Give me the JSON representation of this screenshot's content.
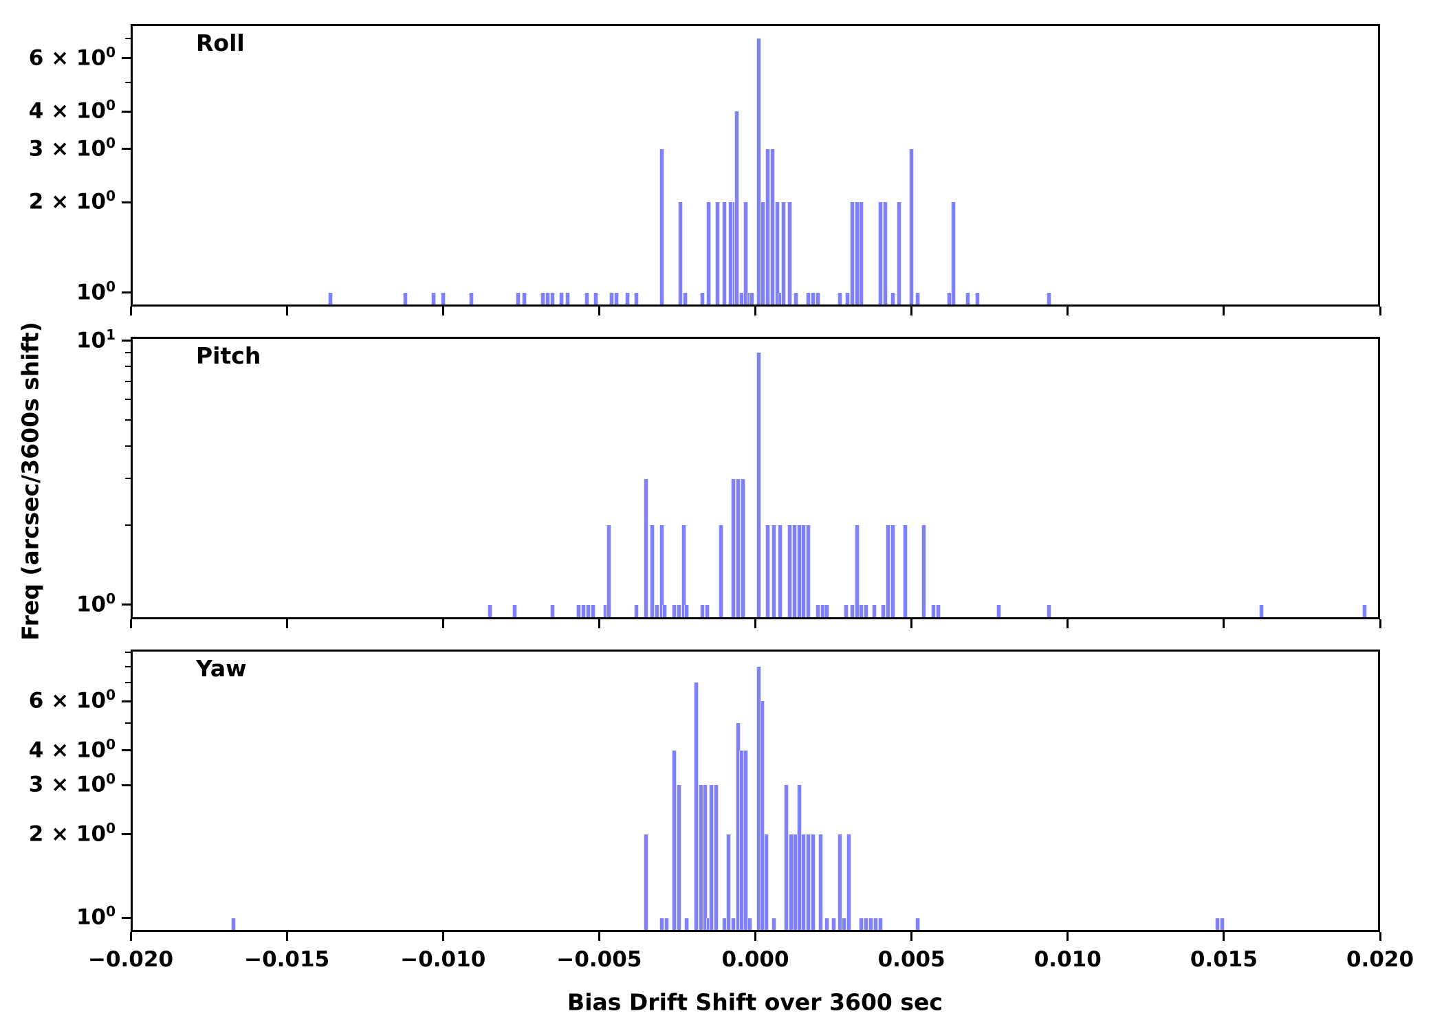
{
  "figure": {
    "xlabel": "Bias Drift Shift over 3600 sec",
    "ylabel": "Freq (arcsec/3600s shift)",
    "bar_color": "#8081f8",
    "bar_edge_color": "#dcdcfb",
    "axis_color": "#000000",
    "background_color": "#ffffff",
    "xlim": [
      -0.02,
      0.02
    ],
    "xticks": [
      {
        "value": -0.02,
        "label": "−0.020"
      },
      {
        "value": -0.015,
        "label": "−0.015"
      },
      {
        "value": -0.01,
        "label": "−0.010"
      },
      {
        "value": -0.005,
        "label": "−0.005"
      },
      {
        "value": 0.0,
        "label": "0.000"
      },
      {
        "value": 0.005,
        "label": "0.005"
      },
      {
        "value": 0.01,
        "label": "0.010"
      },
      {
        "value": 0.015,
        "label": "0.015"
      },
      {
        "value": 0.02,
        "label": "0.020"
      }
    ]
  },
  "chart_data": [
    {
      "type": "bar",
      "name": "Roll",
      "yscale": "log",
      "grid": false,
      "ylim": [
        0.9,
        7.8
      ],
      "yticks_major": [
        {
          "v": 1,
          "base": "10",
          "exp": "0"
        },
        {
          "v": 2,
          "base": "2 × 10",
          "exp": "0"
        },
        {
          "v": 3,
          "base": "3 × 10",
          "exp": "0"
        },
        {
          "v": 4,
          "base": "4 × 10",
          "exp": "0"
        },
        {
          "v": 6,
          "base": "6 × 10",
          "exp": "0"
        }
      ],
      "yticks_minor": [
        5,
        7
      ],
      "bars": [
        [
          -0.0136,
          1
        ],
        [
          -0.0112,
          1
        ],
        [
          -0.0103,
          1
        ],
        [
          -0.01,
          1
        ],
        [
          -0.0091,
          1
        ],
        [
          -0.0076,
          1
        ],
        [
          -0.0074,
          1
        ],
        [
          -0.0068,
          1
        ],
        [
          -0.00665,
          1
        ],
        [
          -0.0065,
          1
        ],
        [
          -0.0062,
          1
        ],
        [
          -0.006,
          1
        ],
        [
          -0.0054,
          1
        ],
        [
          -0.0051,
          1
        ],
        [
          -0.0046,
          1
        ],
        [
          -0.00445,
          1
        ],
        [
          -0.0041,
          1
        ],
        [
          -0.0038,
          1
        ],
        [
          -0.003,
          3
        ],
        [
          -0.0024,
          2
        ],
        [
          -0.00225,
          1
        ],
        [
          -0.0017,
          1
        ],
        [
          -0.0015,
          2
        ],
        [
          -0.0012,
          2
        ],
        [
          -0.001,
          2
        ],
        [
          -0.0008,
          2
        ],
        [
          -0.00065,
          2
        ],
        [
          -0.0006,
          4
        ],
        [
          -0.00045,
          1
        ],
        [
          -0.0003,
          2
        ],
        [
          -0.0002,
          1
        ],
        [
          -0.0001,
          1
        ],
        [
          0.0001,
          7
        ],
        [
          0.00025,
          2
        ],
        [
          0.0004,
          3
        ],
        [
          0.00055,
          3
        ],
        [
          0.0007,
          2
        ],
        [
          0.0008,
          1
        ],
        [
          0.0009,
          2
        ],
        [
          0.0011,
          2
        ],
        [
          0.0013,
          1
        ],
        [
          0.0017,
          1
        ],
        [
          0.00185,
          1
        ],
        [
          0.002,
          1
        ],
        [
          0.0027,
          1
        ],
        [
          0.00295,
          1
        ],
        [
          0.0031,
          2
        ],
        [
          0.00325,
          2
        ],
        [
          0.0034,
          2
        ],
        [
          0.004,
          2
        ],
        [
          0.00415,
          2
        ],
        [
          0.0044,
          1
        ],
        [
          0.0046,
          2
        ],
        [
          0.005,
          3
        ],
        [
          0.0052,
          1
        ],
        [
          0.0062,
          1
        ],
        [
          0.00635,
          2
        ],
        [
          0.0068,
          1
        ],
        [
          0.0071,
          1
        ],
        [
          0.0094,
          1
        ]
      ]
    },
    {
      "type": "bar",
      "name": "Pitch",
      "yscale": "log",
      "grid": false,
      "ylim": [
        0.88,
        10.35
      ],
      "yticks_major": [
        {
          "v": 1,
          "base": "10",
          "exp": "0"
        },
        {
          "v": 10,
          "base": "10",
          "exp": "1"
        }
      ],
      "yticks_minor": [
        2,
        3,
        4,
        5,
        6,
        7,
        8,
        9
      ],
      "bars": [
        [
          -0.0085,
          1
        ],
        [
          -0.0077,
          1
        ],
        [
          -0.0065,
          1
        ],
        [
          -0.00565,
          1
        ],
        [
          -0.0055,
          1
        ],
        [
          -0.00535,
          1
        ],
        [
          -0.0052,
          1
        ],
        [
          -0.0048,
          1
        ],
        [
          -0.0047,
          2
        ],
        [
          -0.0038,
          1
        ],
        [
          -0.0035,
          3
        ],
        [
          -0.0033,
          2
        ],
        [
          -0.00315,
          1
        ],
        [
          -0.003,
          2
        ],
        [
          -0.0029,
          1
        ],
        [
          -0.0026,
          1
        ],
        [
          -0.00245,
          1
        ],
        [
          -0.0023,
          2
        ],
        [
          -0.0022,
          1
        ],
        [
          -0.0017,
          1
        ],
        [
          -0.00155,
          1
        ],
        [
          -0.0011,
          2
        ],
        [
          -0.0007,
          3
        ],
        [
          -0.00055,
          3
        ],
        [
          -0.0004,
          3
        ],
        [
          0.0001,
          9
        ],
        [
          0.0004,
          2
        ],
        [
          0.0006,
          2
        ],
        [
          0.0008,
          2
        ],
        [
          0.0011,
          2
        ],
        [
          0.00125,
          2
        ],
        [
          0.0014,
          2
        ],
        [
          0.00155,
          2
        ],
        [
          0.0017,
          2
        ],
        [
          0.002,
          1
        ],
        [
          0.00215,
          1
        ],
        [
          0.0023,
          1
        ],
        [
          0.0029,
          1
        ],
        [
          0.0031,
          1
        ],
        [
          0.00325,
          2
        ],
        [
          0.0034,
          1
        ],
        [
          0.00355,
          1
        ],
        [
          0.0038,
          1
        ],
        [
          0.0041,
          1
        ],
        [
          0.00425,
          2
        ],
        [
          0.0044,
          2
        ],
        [
          0.0048,
          2
        ],
        [
          0.0054,
          2
        ],
        [
          0.0057,
          1
        ],
        [
          0.00585,
          1
        ],
        [
          0.0078,
          1
        ],
        [
          0.0094,
          1
        ],
        [
          0.0162,
          1
        ],
        [
          0.0195,
          1
        ]
      ]
    },
    {
      "type": "bar",
      "name": "Yaw",
      "yscale": "log",
      "grid": false,
      "ylim": [
        0.89,
        9.2
      ],
      "yticks_major": [
        {
          "v": 1,
          "base": "10",
          "exp": "0"
        },
        {
          "v": 2,
          "base": "2 × 10",
          "exp": "0"
        },
        {
          "v": 3,
          "base": "3 × 10",
          "exp": "0"
        },
        {
          "v": 4,
          "base": "4 × 10",
          "exp": "0"
        },
        {
          "v": 6,
          "base": "6 × 10",
          "exp": "0"
        }
      ],
      "yticks_minor": [
        5,
        7,
        8,
        9
      ],
      "bars": [
        [
          -0.0167,
          1
        ],
        [
          -0.0035,
          2
        ],
        [
          -0.003,
          1
        ],
        [
          -0.00285,
          1
        ],
        [
          -0.0026,
          4
        ],
        [
          -0.00245,
          3
        ],
        [
          -0.0022,
          1
        ],
        [
          -0.0019,
          7
        ],
        [
          -0.00175,
          3
        ],
        [
          -0.0016,
          3
        ],
        [
          -0.0015,
          1
        ],
        [
          -0.0014,
          3
        ],
        [
          -0.00125,
          3
        ],
        [
          -0.001,
          1
        ],
        [
          -0.00085,
          2
        ],
        [
          -0.0007,
          1
        ],
        [
          -0.00055,
          5
        ],
        [
          -0.00045,
          4
        ],
        [
          -0.0003,
          4
        ],
        [
          -0.00018,
          1
        ],
        [
          0.0001,
          8
        ],
        [
          0.00023,
          6
        ],
        [
          0.00036,
          2
        ],
        [
          0.0006,
          1
        ],
        [
          0.001,
          3
        ],
        [
          0.00115,
          2
        ],
        [
          0.00128,
          2
        ],
        [
          0.0014,
          3
        ],
        [
          0.00155,
          2
        ],
        [
          0.0017,
          2
        ],
        [
          0.00185,
          2
        ],
        [
          0.0021,
          2
        ],
        [
          0.0023,
          1
        ],
        [
          0.0025,
          1
        ],
        [
          0.0027,
          2
        ],
        [
          0.00285,
          1
        ],
        [
          0.003,
          2
        ],
        [
          0.0034,
          1
        ],
        [
          0.00355,
          1
        ],
        [
          0.0037,
          1
        ],
        [
          0.00385,
          1
        ],
        [
          0.004,
          1
        ],
        [
          0.0052,
          1
        ],
        [
          0.0148,
          1
        ],
        [
          0.01495,
          1
        ]
      ]
    }
  ]
}
